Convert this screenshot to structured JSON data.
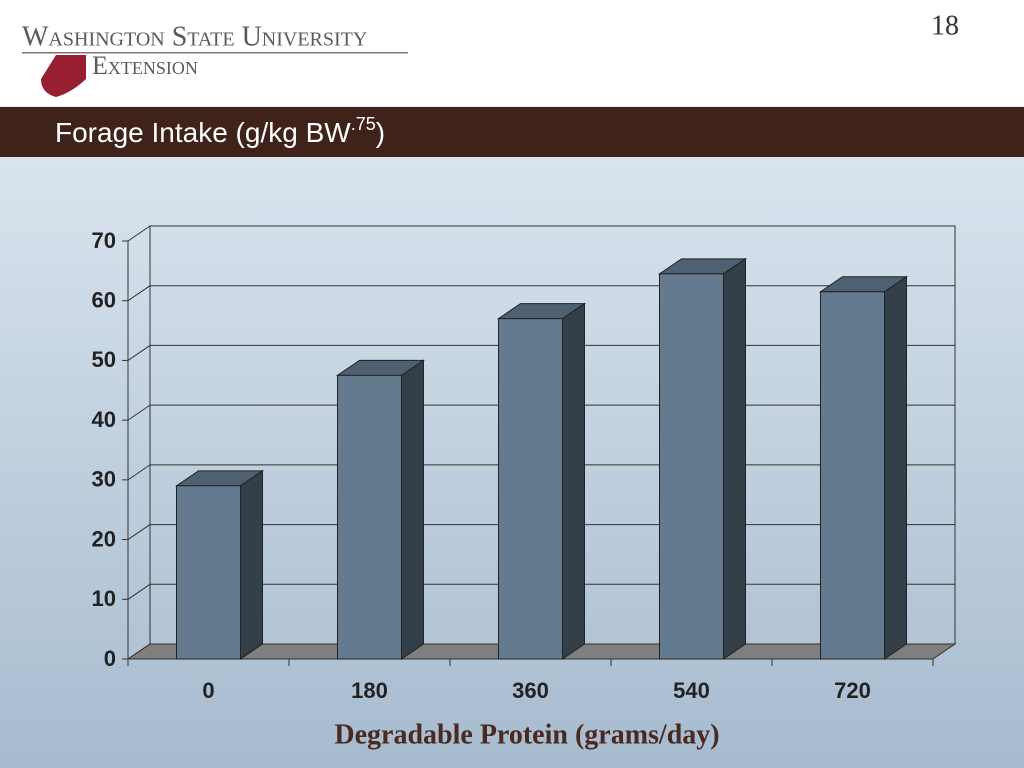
{
  "header": {
    "logo_line1": "Washington State University",
    "logo_line2": "Extension",
    "slide_number": "18"
  },
  "chart_data": {
    "type": "bar3d",
    "title": "Forage Intake (g/kg BW",
    "title_superscript": ".75",
    "title_suffix": ")",
    "x_label": "Degradable Protein (grams/day)",
    "categories": [
      "0",
      "180",
      "360",
      "540",
      "720"
    ],
    "values": [
      29,
      47.5,
      57,
      64.5,
      61.5
    ],
    "color": "#647b8f",
    "ylim": [
      0,
      70
    ],
    "yticks": [
      0,
      10,
      20,
      30,
      40,
      50,
      60,
      70
    ],
    "grid": true
  }
}
